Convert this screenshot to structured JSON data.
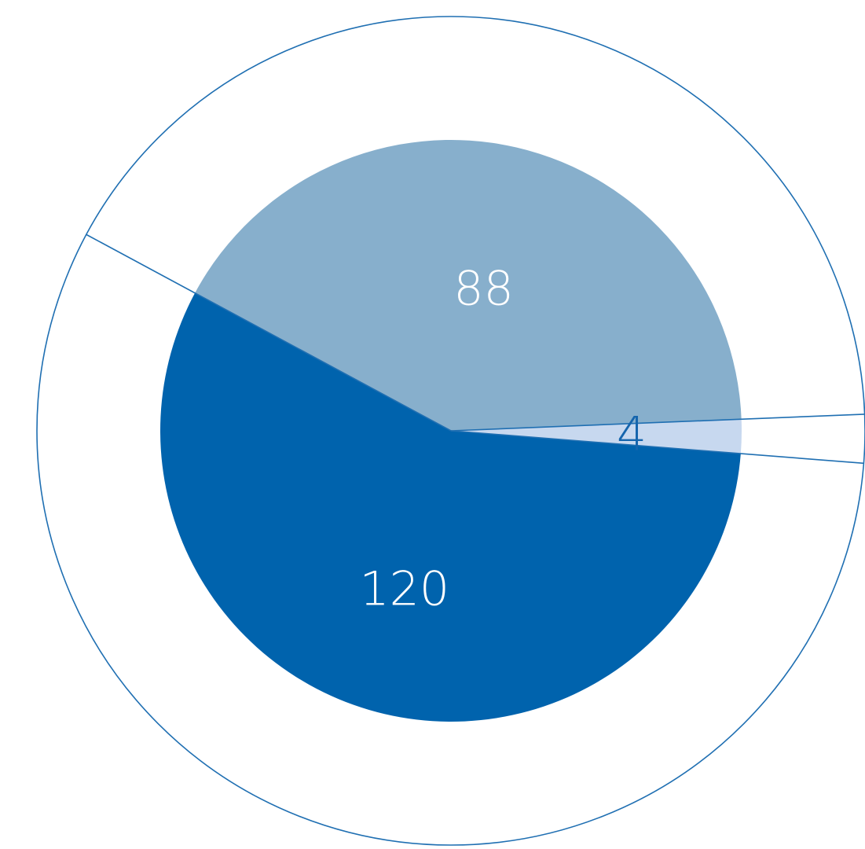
{
  "chart_data": {
    "type": "pie",
    "categories": [
      "",
      "",
      ""
    ],
    "values": [
      120,
      88,
      4
    ],
    "labels": [
      "120",
      "88",
      "4"
    ],
    "colors": [
      "#0063ad",
      "#87afcc",
      "#c7d8ef"
    ],
    "label_colors": [
      "#ffffff",
      "#ffffff",
      "#1565ad"
    ],
    "outline_color": "#1f6fb2",
    "title": "",
    "legend": "none"
  }
}
